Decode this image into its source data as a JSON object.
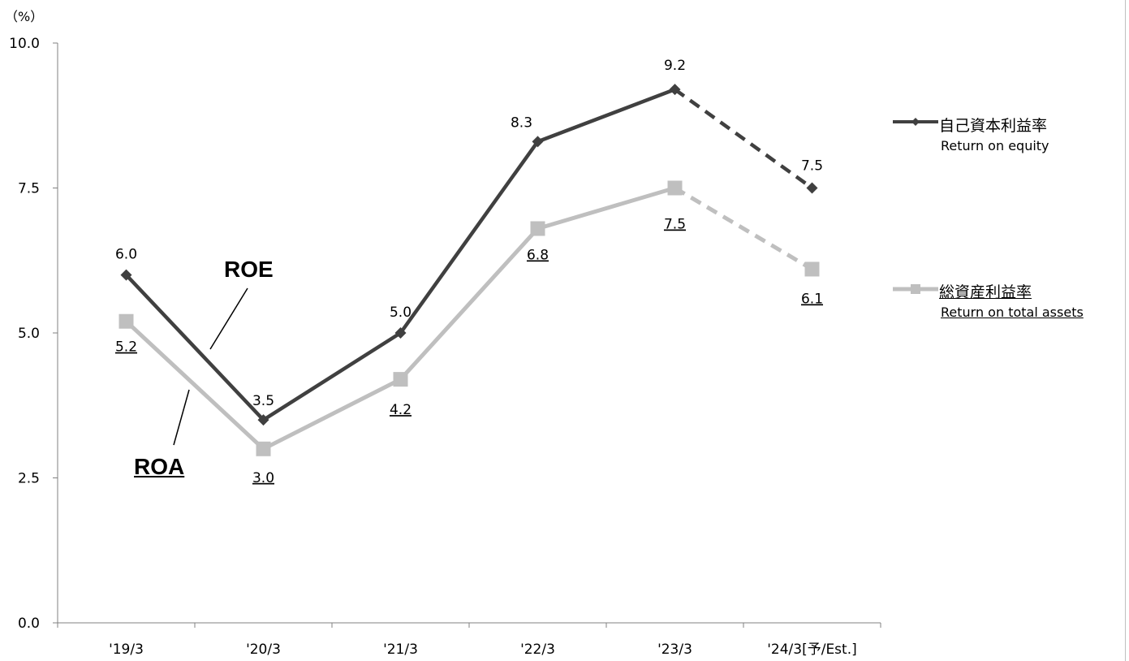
{
  "chart_data": {
    "type": "line",
    "unit_label": "（%）",
    "categories": [
      "'19/3",
      "'20/3",
      "'21/3",
      "'22/3",
      "'23/3",
      "'24/3[予/Est.]"
    ],
    "ylim": [
      0,
      10
    ],
    "yticks": [
      "0.0",
      "2.5",
      "5.0",
      "7.5",
      "10.0"
    ],
    "grid": false,
    "legend_position": "right",
    "series": [
      {
        "name": "自己資本利益率",
        "subtitle": "Return on equity",
        "values": [
          6.0,
          3.5,
          5.0,
          8.3,
          9.2,
          7.5
        ],
        "labels": [
          "6.0",
          "3.5",
          "5.0",
          "8.3",
          "9.2",
          "7.5"
        ],
        "estimate_from_index": 4,
        "color": "#404040",
        "marker": "diamond"
      },
      {
        "name": "総資産利益率",
        "subtitle": "Return on total assets",
        "values": [
          5.2,
          3.0,
          4.2,
          6.8,
          7.5,
          6.1
        ],
        "labels": [
          "5.2",
          "3.0",
          "4.2",
          "6.8",
          "7.5",
          "6.1"
        ],
        "estimate_from_index": 4,
        "color": "#bfbfbf",
        "marker": "square"
      }
    ],
    "annotations": [
      {
        "text": "ROE",
        "series": 0
      },
      {
        "text": "ROA",
        "series": 1
      }
    ]
  }
}
